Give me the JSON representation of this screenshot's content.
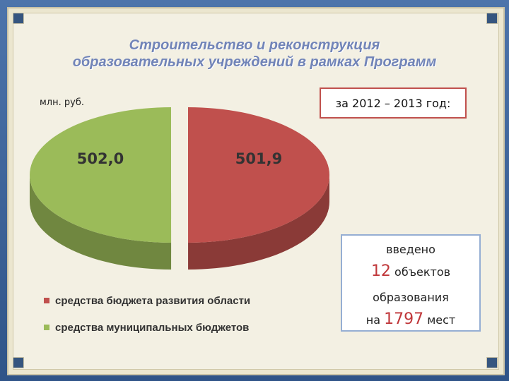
{
  "title_line1": "Строительство и реконструкция",
  "title_line2": "образовательных учреждений в рамках Программ",
  "unit_label": "млн. руб.",
  "period_label": "за 2012 – 2013 год:",
  "info": {
    "line1": "введено",
    "count": "12",
    "count_suffix": "объектов",
    "line3": "образования",
    "prefix4": "на",
    "seats": "1797",
    "suffix4": "мест"
  },
  "colors": {
    "regional": "#c0504d",
    "municipal": "#9bbb59"
  },
  "chart_data": {
    "type": "pie",
    "slices": [
      {
        "name": "средства бюджета развития области",
        "value": 501.9,
        "label": "501,9",
        "color": "#c0504d"
      },
      {
        "name": "средства муниципальных бюджетов",
        "value": 502.0,
        "label": "502,0",
        "color": "#9bbb59"
      }
    ],
    "legend_position": "bottom-left"
  }
}
